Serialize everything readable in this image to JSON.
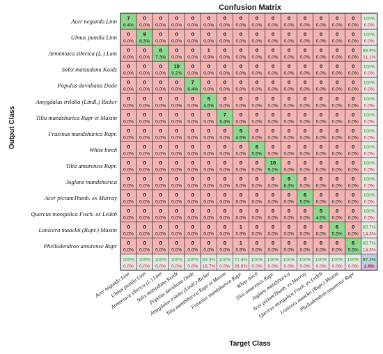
{
  "chart_data": {
    "type": "heatmap",
    "title": "Confusion Matrix",
    "xlabel": "Target Class",
    "ylabel": "Output Class",
    "classes": [
      "Acer negundo Linn",
      "Ulmus pumila Linn",
      "Armeniaca sibirica (L.) Lam",
      "Salix matsudana Koidz",
      "Populus davidiana Dode",
      "Amygdalus triloba (Lindl.) Ricker",
      "Tilia mandshurica Rupr et Maxim",
      "Fraxinus mandshurica Rupr.",
      "White birch",
      "Tilia amurensis Rupr.",
      "Juglans mandshurica",
      "Acer pictumThunb. ex Murray",
      "Quercus mongolica Fisch. ex Ledeb",
      "Lonicera maackii (Rupr.) Maxim",
      "Phellodendron amurense Rupr"
    ],
    "matrix": [
      [
        7,
        0,
        0,
        0,
        0,
        0,
        0,
        0,
        0,
        0,
        0,
        0,
        0,
        0,
        0
      ],
      [
        0,
        9,
        0,
        0,
        0,
        0,
        0,
        0,
        0,
        0,
        0,
        0,
        0,
        0,
        0
      ],
      [
        0,
        0,
        8,
        0,
        0,
        1,
        0,
        0,
        0,
        0,
        0,
        0,
        0,
        0,
        0
      ],
      [
        0,
        0,
        0,
        10,
        0,
        0,
        0,
        0,
        0,
        0,
        0,
        0,
        0,
        0,
        0
      ],
      [
        0,
        0,
        0,
        0,
        7,
        0,
        0,
        0,
        0,
        0,
        0,
        0,
        0,
        0,
        0
      ],
      [
        0,
        0,
        0,
        0,
        0,
        5,
        0,
        0,
        0,
        0,
        0,
        0,
        0,
        0,
        0
      ],
      [
        0,
        0,
        0,
        0,
        0,
        0,
        7,
        0,
        0,
        0,
        0,
        0,
        0,
        0,
        0
      ],
      [
        0,
        0,
        0,
        0,
        0,
        0,
        0,
        5,
        0,
        0,
        0,
        0,
        0,
        0,
        0
      ],
      [
        0,
        0,
        0,
        0,
        0,
        0,
        0,
        0,
        6,
        0,
        0,
        0,
        0,
        0,
        0
      ],
      [
        0,
        0,
        0,
        0,
        0,
        0,
        0,
        0,
        0,
        10,
        0,
        0,
        0,
        0,
        0
      ],
      [
        0,
        0,
        0,
        0,
        0,
        0,
        0,
        0,
        0,
        0,
        9,
        0,
        0,
        0,
        0
      ],
      [
        0,
        0,
        0,
        0,
        0,
        0,
        0,
        0,
        0,
        0,
        0,
        6,
        0,
        0,
        0
      ],
      [
        0,
        0,
        0,
        0,
        0,
        0,
        0,
        0,
        0,
        0,
        0,
        0,
        5,
        0,
        0
      ],
      [
        0,
        0,
        0,
        0,
        0,
        0,
        0,
        1,
        0,
        0,
        0,
        0,
        0,
        6,
        0
      ],
      [
        0,
        0,
        0,
        0,
        0,
        0,
        0,
        1,
        0,
        0,
        0,
        0,
        0,
        0,
        6
      ]
    ],
    "cell_percent_labels": [
      [
        "6.4%",
        "0.0%",
        "0.0%",
        "0.0%",
        "0.0%",
        "0.0%",
        "0.0%",
        "0.0%",
        "0.0%",
        "0.0%",
        "0.0%",
        "0.0%",
        "0.0%",
        "0.0%",
        "0.0%"
      ],
      [
        "0.0%",
        "8.3%",
        "0.0%",
        "0.0%",
        "0.0%",
        "0.0%",
        "0.0%",
        "0.0%",
        "0.0%",
        "0.0%",
        "0.0%",
        "0.0%",
        "0.0%",
        "0.0%",
        "0.0%"
      ],
      [
        "0.0%",
        "0.0%",
        "7.3%",
        "0.0%",
        "0.0%",
        "0.9%",
        "0.0%",
        "0.0%",
        "0.0%",
        "0.0%",
        "0.0%",
        "0.0%",
        "0.0%",
        "0.0%",
        "0.0%"
      ],
      [
        "0.0%",
        "0.0%",
        "0.0%",
        "9.2%",
        "0.0%",
        "0.0%",
        "0.0%",
        "0.0%",
        "0.0%",
        "0.0%",
        "0.0%",
        "0.0%",
        "0.0%",
        "0.0%",
        "0.0%"
      ],
      [
        "0.0%",
        "0.0%",
        "0.0%",
        "0.0%",
        "6.4%",
        "0.0%",
        "0.0%",
        "0.0%",
        "0.0%",
        "0.0%",
        "0.0%",
        "0.0%",
        "0.0%",
        "0.0%",
        "0.0%"
      ],
      [
        "0.0%",
        "0.0%",
        "0.0%",
        "0.0%",
        "0.0%",
        "4.6%",
        "0.0%",
        "0.0%",
        "0.0%",
        "0.0%",
        "0.0%",
        "0.0%",
        "0.0%",
        "0.0%",
        "0.0%"
      ],
      [
        "0.0%",
        "0.0%",
        "0.0%",
        "0.0%",
        "0.0%",
        "0.0%",
        "6.4%",
        "0.0%",
        "0.0%",
        "0.0%",
        "0.0%",
        "0.0%",
        "0.0%",
        "0.0%",
        "0.0%"
      ],
      [
        "0.0%",
        "0.0%",
        "0.0%",
        "0.0%",
        "0.0%",
        "0.0%",
        "0.0%",
        "4.6%",
        "0.0%",
        "0.0%",
        "0.0%",
        "0.0%",
        "0.0%",
        "0.0%",
        "0.0%"
      ],
      [
        "0.0%",
        "0.0%",
        "0.0%",
        "0.0%",
        "0.0%",
        "0.0%",
        "0.0%",
        "0.0%",
        "5.5%",
        "0.0%",
        "0.0%",
        "0.0%",
        "0.0%",
        "0.0%",
        "0.0%"
      ],
      [
        "0.0%",
        "0.0%",
        "0.0%",
        "0.0%",
        "0.0%",
        "0.0%",
        "0.0%",
        "0.0%",
        "0.0%",
        "9.2%",
        "0.0%",
        "0.0%",
        "0.0%",
        "0.0%",
        "0.0%"
      ],
      [
        "0.0%",
        "0.0%",
        "0.0%",
        "0.0%",
        "0.0%",
        "0.0%",
        "0.0%",
        "0.0%",
        "0.0%",
        "0.0%",
        "8.3%",
        "0.0%",
        "0.0%",
        "0.0%",
        "0.0%"
      ],
      [
        "0.0%",
        "0.0%",
        "0.0%",
        "0.0%",
        "0.0%",
        "0.0%",
        "0.0%",
        "0.0%",
        "0.0%",
        "0.0%",
        "0.0%",
        "5.5%",
        "0.0%",
        "0.0%",
        "0.0%"
      ],
      [
        "0.0%",
        "0.0%",
        "0.0%",
        "0.0%",
        "0.0%",
        "0.0%",
        "0.0%",
        "0.0%",
        "0.0%",
        "0.0%",
        "0.0%",
        "0.0%",
        "4.6%",
        "0.0%",
        "0.0%"
      ],
      [
        "0.0%",
        "0.0%",
        "0.0%",
        "0.0%",
        "0.0%",
        "0.0%",
        "0.0%",
        "0.9%",
        "0.0%",
        "0.0%",
        "0.0%",
        "0.0%",
        "0.0%",
        "5.5%",
        "0.0%"
      ],
      [
        "0.0%",
        "0.0%",
        "0.0%",
        "0.0%",
        "0.0%",
        "0.0%",
        "0.0%",
        "0.9%",
        "0.0%",
        "0.0%",
        "0.0%",
        "0.0%",
        "0.0%",
        "0.0%",
        "5.5%"
      ]
    ],
    "row_summary": [
      [
        "100%",
        "0.0%"
      ],
      [
        "100%",
        "0.0%"
      ],
      [
        "88.9%",
        "11.1%"
      ],
      [
        "100%",
        "0.0%"
      ],
      [
        "100%",
        "0.0%"
      ],
      [
        "100%",
        "0.0%"
      ],
      [
        "100%",
        "0.0%"
      ],
      [
        "100%",
        "0.0%"
      ],
      [
        "100%",
        "0.0%"
      ],
      [
        "100%",
        "0.0%"
      ],
      [
        "100%",
        "0.0%"
      ],
      [
        "100%",
        "0.0%"
      ],
      [
        "100%",
        "0.0%"
      ],
      [
        "85.7%",
        "14.3%"
      ],
      [
        "85.7%",
        "14.3%"
      ]
    ],
    "col_summary": [
      [
        "100%",
        "0.0%"
      ],
      [
        "100%",
        "0.0%"
      ],
      [
        "100%",
        "0.0%"
      ],
      [
        "100%",
        "0.0%"
      ],
      [
        "100%",
        "0.0%"
      ],
      [
        "83.3%",
        "16.7%"
      ],
      [
        "100%",
        "0.0%"
      ],
      [
        "71.4%",
        "28.6%"
      ],
      [
        "100%",
        "0.0%"
      ],
      [
        "100%",
        "0.0%"
      ],
      [
        "100%",
        "0.0%"
      ],
      [
        "100%",
        "0.0%"
      ],
      [
        "100%",
        "0.0%"
      ],
      [
        "100%",
        "0.0%"
      ],
      [
        "100%",
        "0.0%"
      ]
    ],
    "total_summary": [
      "97.2%",
      "2.8%"
    ],
    "colors": {
      "diagonal": "#8fd68f",
      "off_diagonal": "#f4b4b4",
      "summary": "#e6e6e6",
      "total": "#c8c8ea",
      "good_text": "#12a012",
      "bad_text": "#d21a1a",
      "grid": "#333333"
    },
    "grid": true,
    "legend": "none"
  }
}
